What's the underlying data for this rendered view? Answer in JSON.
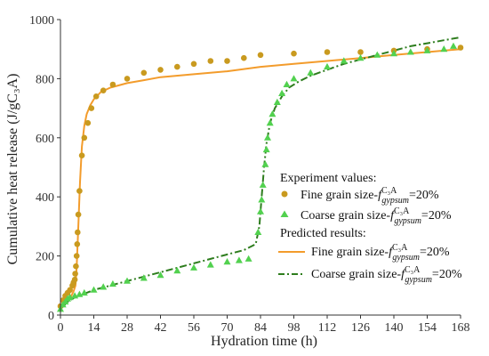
{
  "chart_data": {
    "type": "scatter",
    "xlabel": "Hydration time (h)",
    "ylabel": "Cumulative heat release (J/gC₃A)",
    "xlim": [
      0,
      168
    ],
    "ylim": [
      0,
      1000
    ],
    "xticks": [
      0,
      14,
      28,
      42,
      56,
      70,
      84,
      98,
      112,
      126,
      140,
      154,
      168
    ],
    "yticks": [
      0,
      200,
      400,
      600,
      800,
      1000
    ],
    "grid": false,
    "legend_position": "center-right",
    "colors": {
      "fine": "#F39C2C",
      "fine_marker": "#C99A1F",
      "coarse": "#2E7D1E",
      "coarse_marker": "#52D14F"
    },
    "legend": {
      "exp_header": "Experiment values:",
      "pred_header": "Predicted results:",
      "fine_label": "Fine grain size-",
      "coarse_label": "Coarse grain size-",
      "f_symbol": "f",
      "f_sup": "C₃A",
      "f_sub": "gypsum",
      "ratio_text": "=20%"
    },
    "series": [
      {
        "name": "Fine grain size experiment",
        "kind": "marker",
        "marker": "circle",
        "color": "#C99A1F",
        "x": [
          0,
          1,
          2,
          3,
          4,
          5,
          5.5,
          6,
          6.2,
          6.5,
          6.8,
          7,
          7.2,
          7.5,
          8,
          9,
          10,
          11.5,
          13,
          15,
          18,
          22,
          28,
          35,
          42,
          49,
          56,
          63,
          70,
          77,
          84,
          98,
          112,
          126,
          140,
          154,
          168
        ],
        "y": [
          30,
          50,
          65,
          75,
          85,
          100,
          110,
          120,
          140,
          165,
          200,
          240,
          280,
          340,
          420,
          540,
          600,
          650,
          700,
          740,
          760,
          780,
          800,
          820,
          830,
          840,
          850,
          860,
          860,
          870,
          880,
          885,
          890,
          890,
          895,
          900,
          905
        ]
      },
      {
        "name": "Coarse grain size experiment",
        "kind": "marker",
        "marker": "triangle",
        "color": "#52D14F",
        "x": [
          0,
          1,
          2,
          3,
          4,
          6,
          8,
          10,
          14,
          18,
          22,
          28,
          35,
          42,
          49,
          56,
          63,
          70,
          75,
          79,
          83,
          84,
          84.5,
          85,
          86,
          86.5,
          87,
          88,
          89,
          91,
          93,
          95,
          98,
          105,
          112,
          119,
          126,
          133,
          140,
          147,
          154,
          161,
          165
        ],
        "y": [
          20,
          35,
          45,
          55,
          60,
          65,
          70,
          75,
          85,
          95,
          105,
          115,
          125,
          135,
          150,
          160,
          170,
          180,
          185,
          190,
          280,
          350,
          390,
          440,
          510,
          560,
          600,
          650,
          680,
          720,
          750,
          780,
          800,
          820,
          840,
          860,
          870,
          880,
          885,
          890,
          895,
          900,
          910
        ]
      },
      {
        "name": "Fine grain size predicted",
        "kind": "line",
        "style": "solid",
        "color": "#F39C2C",
        "x": [
          0,
          2,
          4,
          5.5,
          6.3,
          6.8,
          7.5,
          8.2,
          9,
          10,
          11,
          12.5,
          14,
          17,
          21,
          28,
          35,
          42,
          56,
          70,
          84,
          98,
          112,
          126,
          140,
          154,
          168
        ],
        "y": [
          20,
          40,
          55,
          80,
          100,
          160,
          300,
          450,
          570,
          640,
          680,
          710,
          730,
          755,
          770,
          785,
          795,
          805,
          815,
          825,
          840,
          850,
          860,
          870,
          880,
          890,
          900
        ]
      },
      {
        "name": "Coarse grain size predicted",
        "kind": "line",
        "style": "dashdot",
        "color": "#2E7D1E",
        "x": [
          0,
          3,
          6,
          10,
          14,
          21,
          28,
          35,
          42,
          49,
          56,
          63,
          70,
          77,
          82,
          83.5,
          84.5,
          85.5,
          86.5,
          88,
          90,
          93,
          96,
          100,
          105,
          112,
          119,
          126,
          133,
          140,
          147,
          154,
          161,
          168
        ],
        "y": [
          20,
          45,
          60,
          72,
          85,
          100,
          115,
          130,
          145,
          160,
          175,
          190,
          205,
          220,
          240,
          300,
          400,
          500,
          580,
          650,
          700,
          740,
          770,
          790,
          810,
          830,
          850,
          865,
          880,
          895,
          910,
          920,
          930,
          940
        ]
      }
    ]
  }
}
